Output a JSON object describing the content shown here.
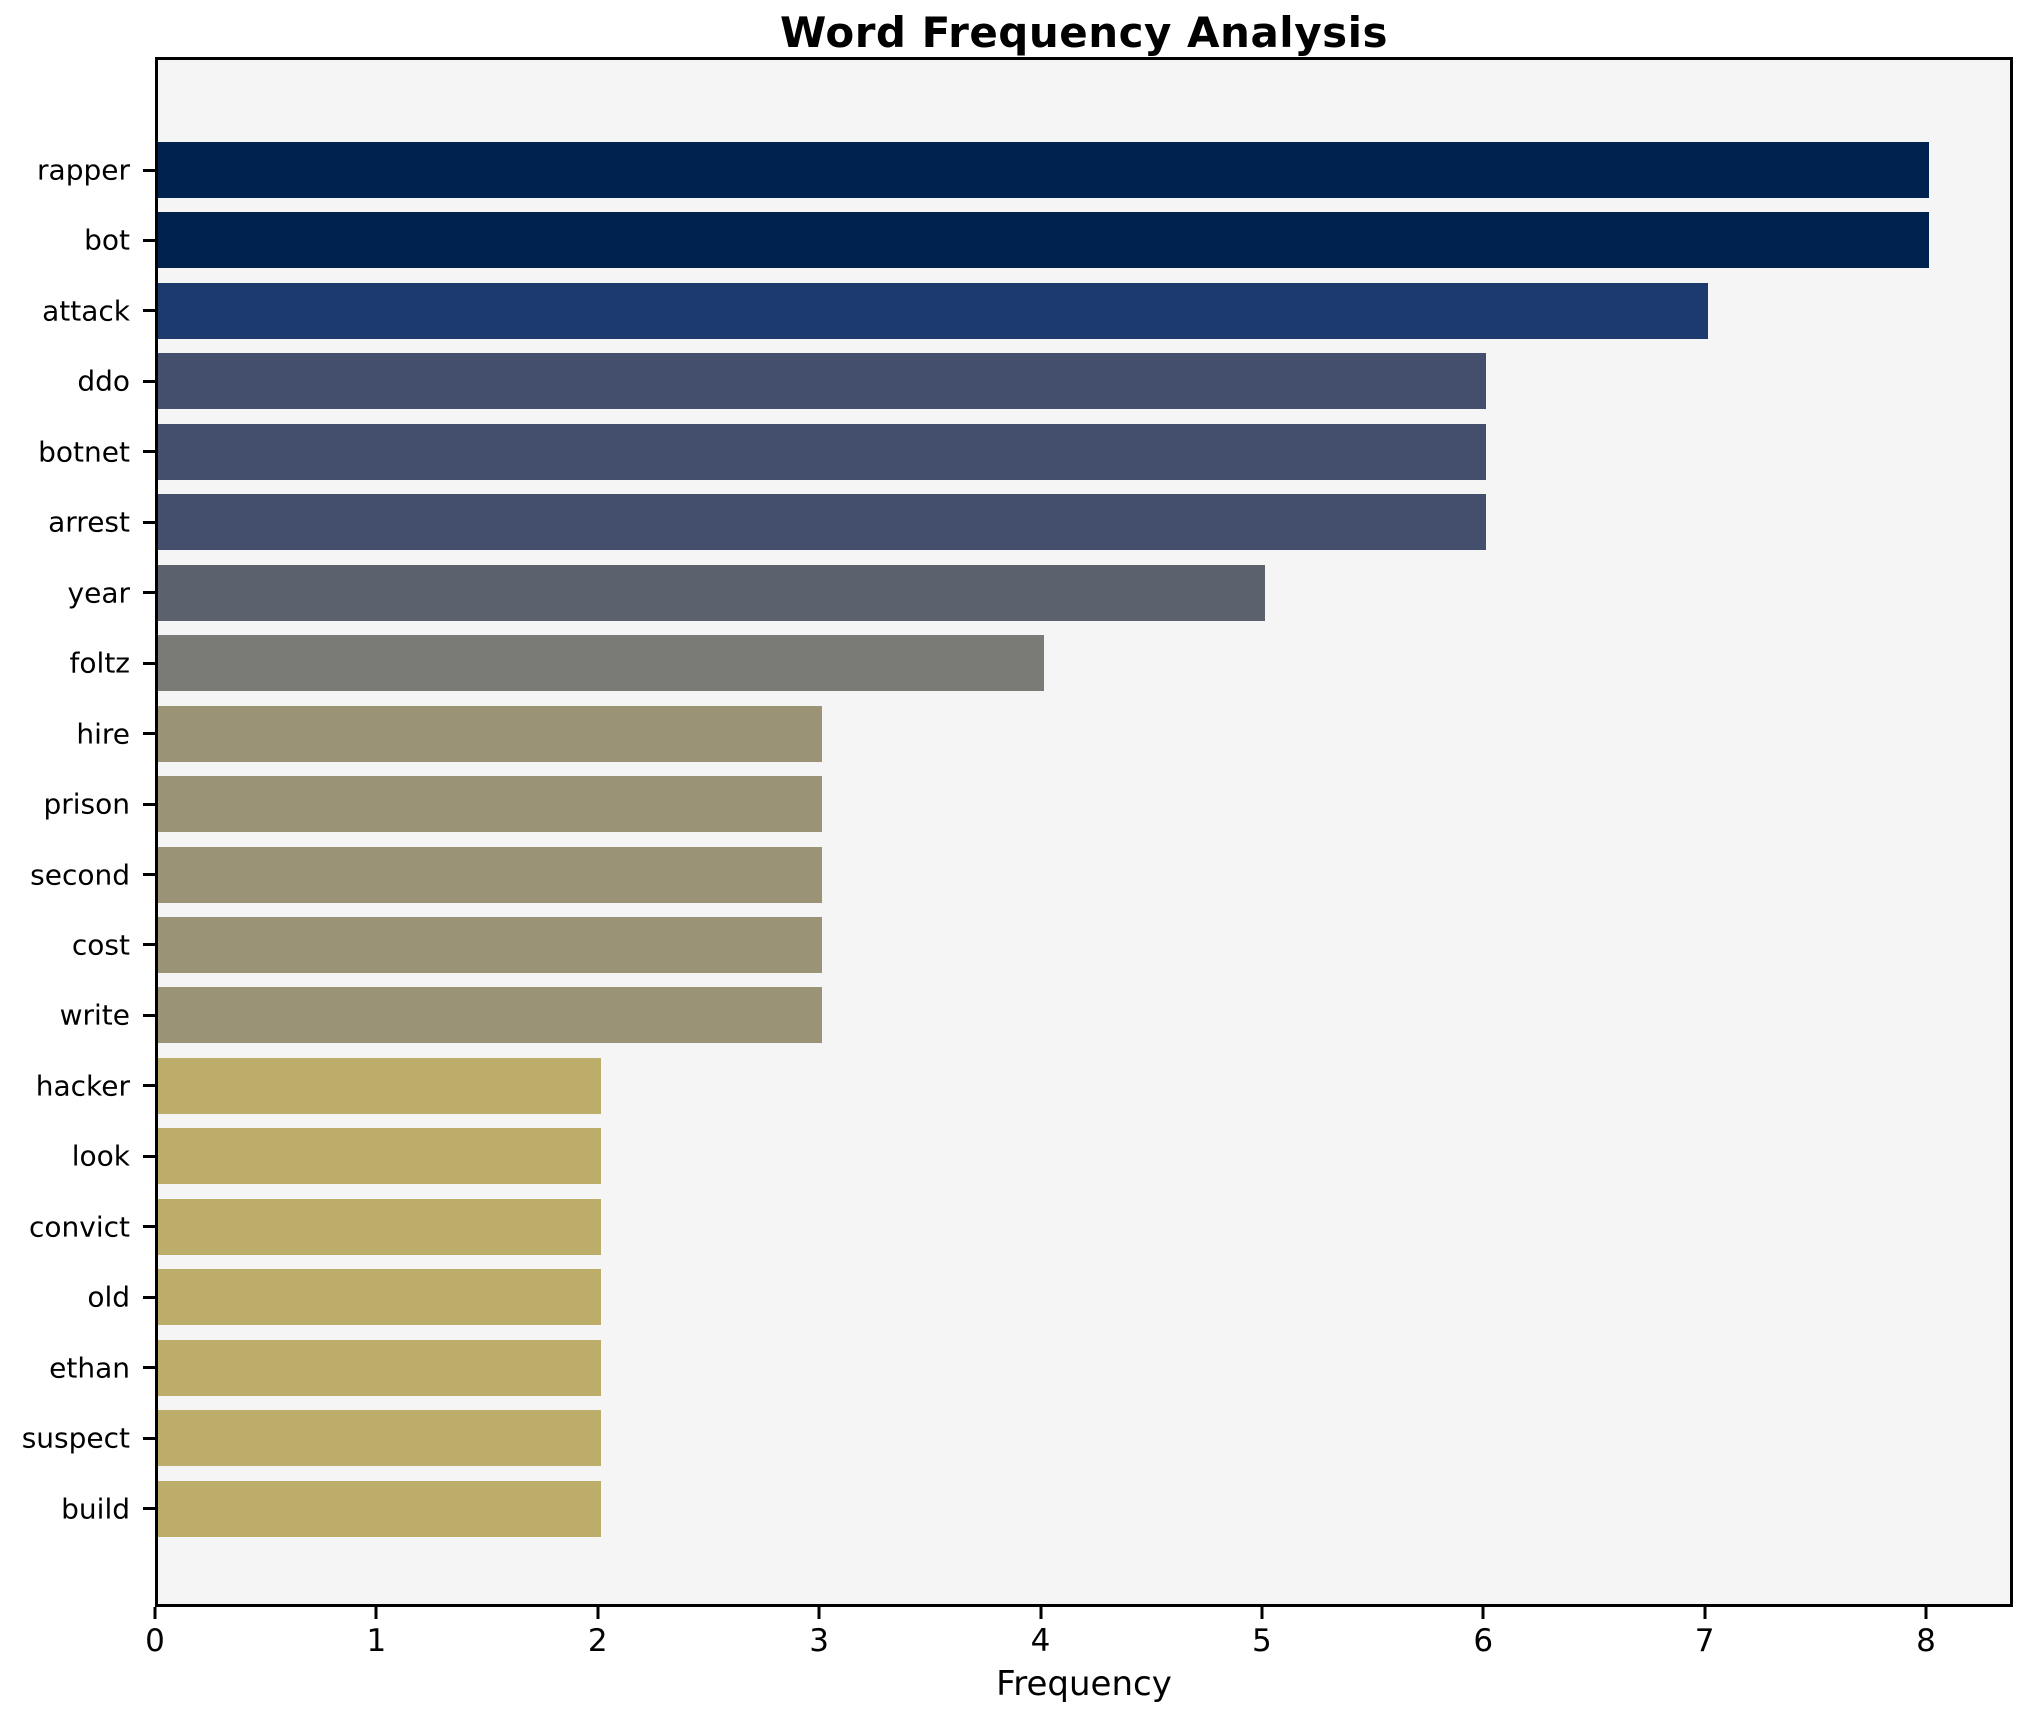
{
  "chart_data": {
    "type": "bar",
    "orientation": "horizontal",
    "title": "Word Frequency Analysis",
    "xlabel": "Frequency",
    "ylabel": "",
    "categories": [
      "rapper",
      "bot",
      "attack",
      "ddo",
      "botnet",
      "arrest",
      "year",
      "foltz",
      "hire",
      "prison",
      "second",
      "cost",
      "write",
      "hacker",
      "look",
      "convict",
      "old",
      "ethan",
      "suspect",
      "build"
    ],
    "values": [
      8,
      8,
      7,
      6,
      6,
      6,
      5,
      4,
      3,
      3,
      3,
      3,
      3,
      2,
      2,
      2,
      2,
      2,
      2,
      2
    ],
    "xticks": [
      0,
      1,
      2,
      3,
      4,
      5,
      6,
      7,
      8
    ],
    "xlim": [
      0,
      8.39
    ],
    "grid": false,
    "legend": null,
    "colors": {
      "bar_color_by_value": {
        "8": "#00224e",
        "7": "#1d3a6e",
        "6": "#444f6d",
        "5": "#5c626d",
        "4": "#7a7a76",
        "3": "#9a9376",
        "2": "#bcad6a"
      },
      "plot_background": "#f5f5f6",
      "figure_background": "#ffffff",
      "spine_color": "#000000",
      "text_color": "#000000"
    }
  }
}
